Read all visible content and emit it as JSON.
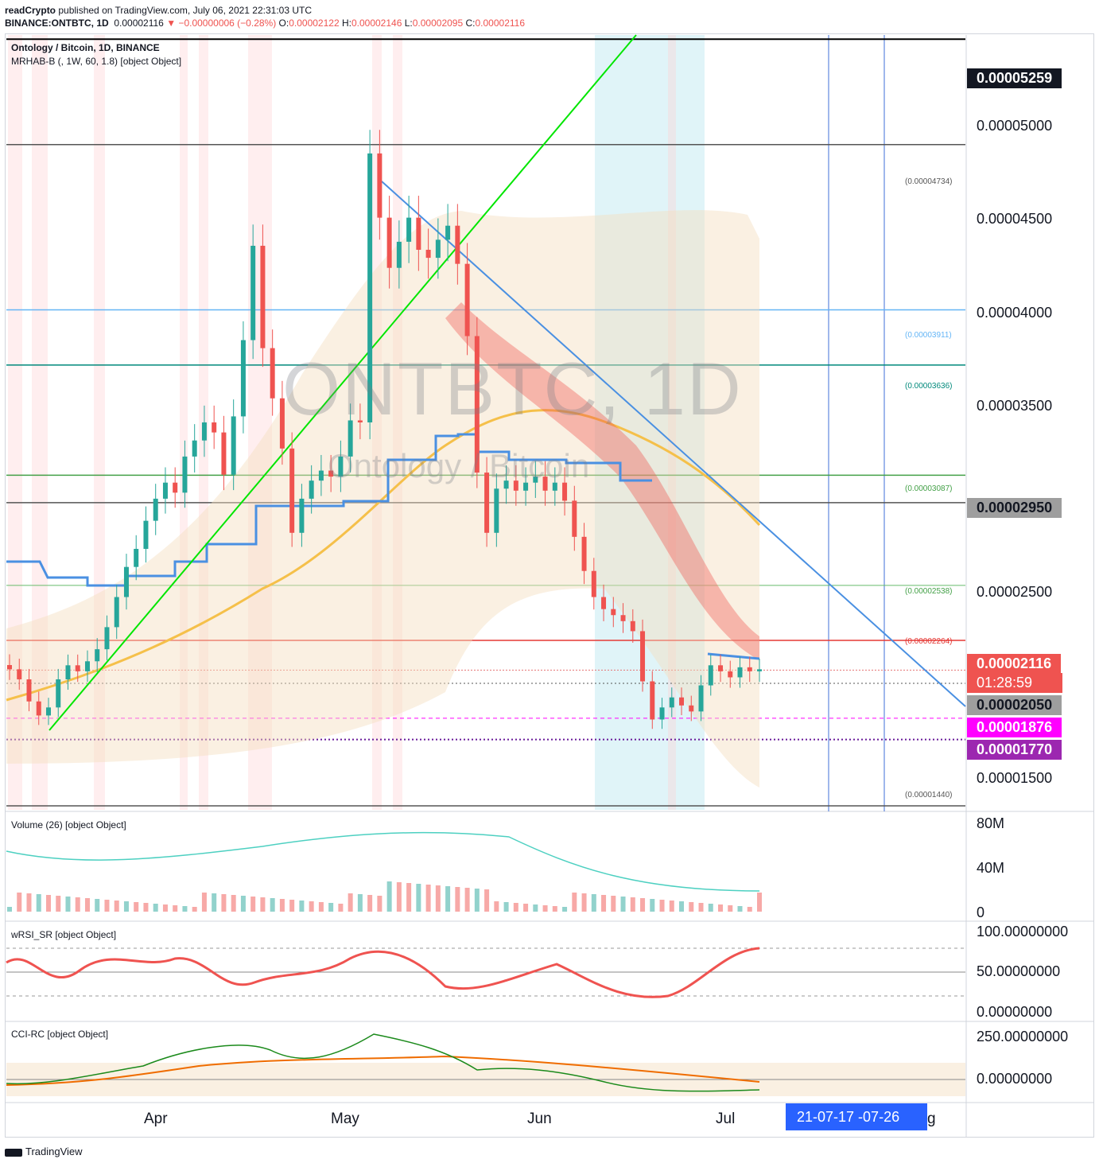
{
  "header": {
    "publisher": "readCrypto",
    "publish_note": "published on TradingView.com, July 06, 2021 22:31:03 UTC",
    "symbol": "BINANCE:ONTBTC, 1D",
    "last": "0.00002116",
    "change": "−0.00000006 (−0.28%)",
    "open_label": "O:",
    "open": "0.00002122",
    "high_label": "H:",
    "high": "0.00002146",
    "low_label": "L:",
    "low": "0.00002095",
    "close_label": "C:",
    "close": "0.00002116"
  },
  "main_legend": {
    "title": "Ontology / Bitcoin, 1D, BINANCE",
    "indicator": "MRHAB-B (, 1W, 60, 1.8) [object Object]"
  },
  "watermark": {
    "symbol": "ONTBTC, 1D",
    "name": "Ontology / Bitcoin"
  },
  "price_axis": [
    "0.00005000",
    "0.00004500",
    "0.00004000",
    "0.00003500",
    "0.00002500",
    "0.00001500"
  ],
  "price_tags": {
    "top": "0.00005259",
    "line_2950": "0.00002950",
    "last": "0.00002116",
    "countdown": "01:28:59",
    "line_2050": "0.00002050",
    "line_1876": "0.00001876",
    "line_1770": "0.00001770"
  },
  "level_labels": [
    "(0.00004734)",
    "(0.00003911)",
    "(0.00003636)",
    "(0.00003087)",
    "(0.00002538)",
    "(0.00002264)",
    "(0.00001440)"
  ],
  "volume_pane": {
    "legend": "Volume (26) [object Object]",
    "axis": [
      "80M",
      "40M",
      "0"
    ]
  },
  "rsi_pane": {
    "legend": "wRSI_SR [object Object]",
    "axis": [
      "100.00000000",
      "50.00000000",
      "0.00000000"
    ]
  },
  "cci_pane": {
    "legend": "CCI-RC [object Object]",
    "axis": [
      "250.00000000",
      "0.00000000"
    ]
  },
  "time_axis": {
    "labels": [
      "Apr",
      "May",
      "Jun",
      "Jul"
    ],
    "selected_range": "21-07-17   -07-26",
    "tail": "g"
  },
  "footer": {
    "brand": "TradingView"
  },
  "colors": {
    "up": "#26a69a",
    "down": "#ef5350",
    "blue_line": "#4a90e2",
    "yellow_ma": "#f5c04a",
    "green_trend": "#00e600",
    "magenta": "#ff00ff",
    "purple": "#9c27b0"
  },
  "chart_data": {
    "type": "candlestick",
    "title": "Ontology / Bitcoin, 1D, BINANCE",
    "y_axis": {
      "min": 1.42e-05,
      "max": 5.28e-05,
      "ticks": [
        1.5e-05,
        2.5e-05,
        3.5e-05,
        4e-05,
        4.5e-05,
        5e-05
      ]
    },
    "x_axis": {
      "labels": [
        "Apr",
        "May",
        "Jun",
        "Jul"
      ]
    },
    "horizontal_levels": [
      5.259e-05,
      4.734e-05,
      3.911e-05,
      3.636e-05,
      3.087e-05,
      2.95e-05,
      2.538e-05,
      2.264e-05,
      2.116e-05,
      2.05e-05,
      1.876e-05,
      1.77e-05,
      1.44e-05
    ],
    "close_series": [
      2.12e-05,
      2.07e-05,
      1.96e-05,
      1.89e-05,
      1.93e-05,
      2.07e-05,
      2.14e-05,
      2.11e-05,
      2.16e-05,
      2.22e-05,
      2.33e-05,
      2.48e-05,
      2.63e-05,
      2.72e-05,
      2.86e-05,
      2.97e-05,
      3.05e-05,
      3e-05,
      3.18e-05,
      3.26e-05,
      3.35e-05,
      3.3e-05,
      3.09e-05,
      3.38e-05,
      3.76e-05,
      4.23e-05,
      3.72e-05,
      3.47e-05,
      3.22e-05,
      2.8e-05,
      2.97e-05,
      3.06e-05,
      3.11e-05,
      3.08e-05,
      3.18e-05,
      3.36e-05,
      3.35e-05,
      4.69e-05,
      4.37e-05,
      4.12e-05,
      4.25e-05,
      4.37e-05,
      4.21e-05,
      4.17e-05,
      4.26e-05,
      4.33e-05,
      4.14e-05,
      3.78e-05,
      3.1e-05,
      2.8e-05,
      3.02e-05,
      3.06e-05,
      3.01e-05,
      3.05e-05,
      3.08e-05,
      3.01e-05,
      3.05e-05,
      2.96e-05,
      2.78e-05,
      2.61e-05,
      2.48e-05,
      2.42e-05,
      2.39e-05,
      2.36e-05,
      2.31e-05,
      2.06e-05,
      1.87e-05,
      1.93e-05,
      1.98e-05,
      1.94e-05,
      1.91e-05,
      2.04e-05,
      2.14e-05,
      2.11e-05,
      2.08e-05,
      2.13e-05,
      2.11e-05,
      2.12e-05
    ]
  }
}
